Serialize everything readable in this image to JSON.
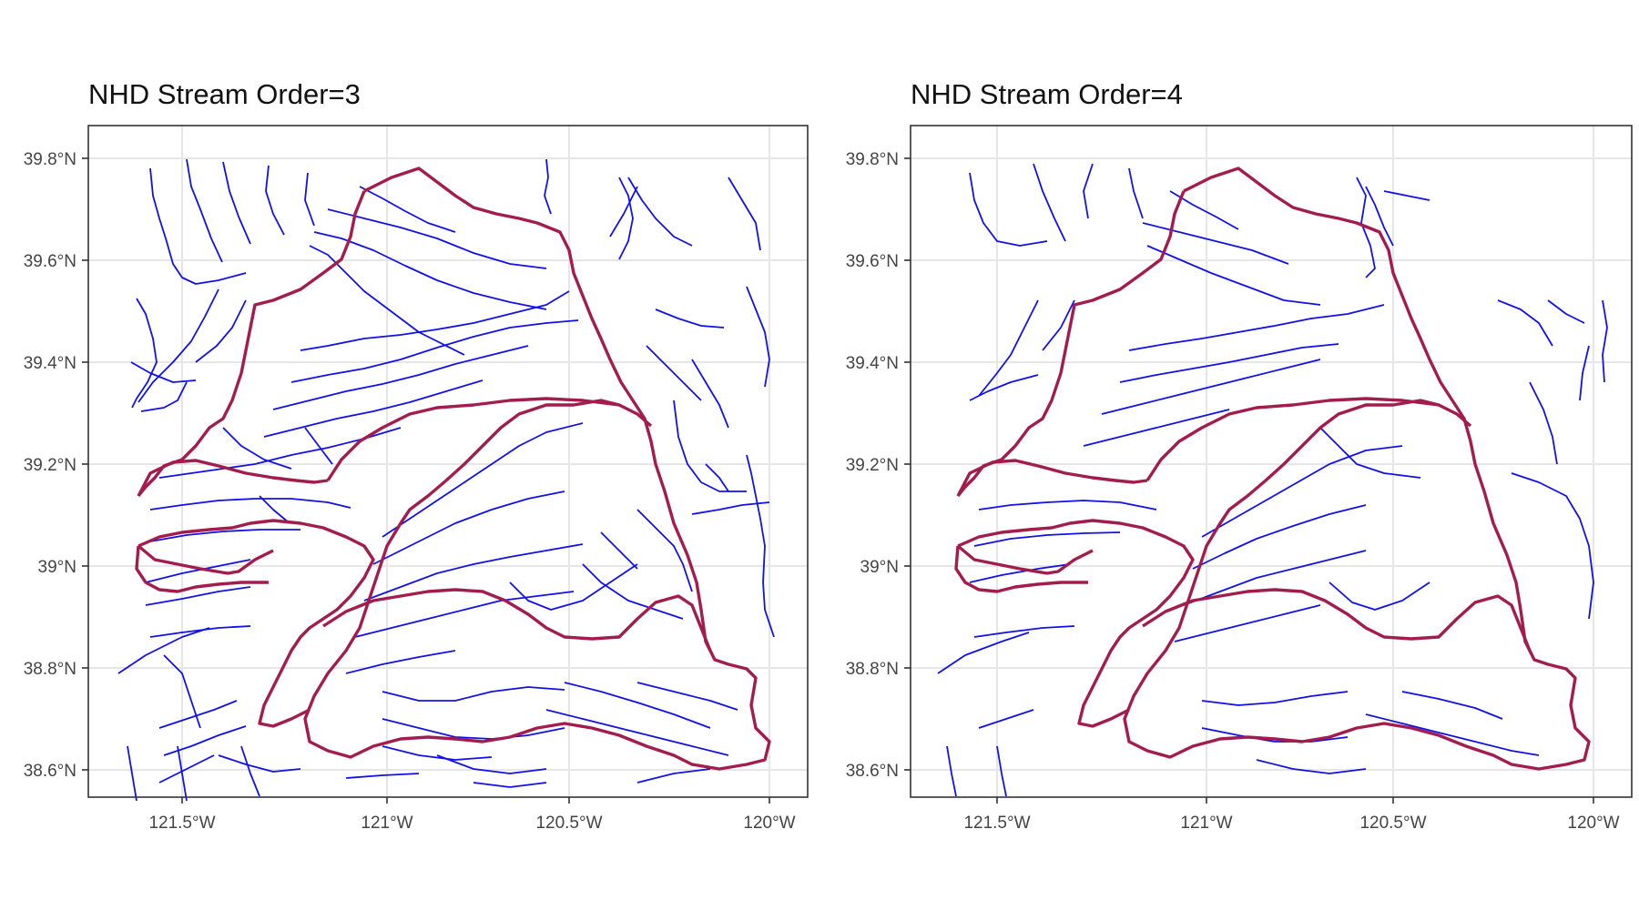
{
  "panels": [
    {
      "title": "NHD Stream Order=3",
      "x_ticks": [
        "121.5°W",
        "121°W",
        "120.5°W",
        "120°W"
      ],
      "y_ticks": [
        "39.8°N",
        "39.6°N",
        "39.4°N",
        "39.2°N",
        "39°N",
        "38.8°N",
        "38.6°N"
      ]
    },
    {
      "title": "NHD Stream Order=4",
      "x_ticks": [
        "121.5°W",
        "121°W",
        "120.5°W",
        "120°W"
      ],
      "y_ticks": [
        "39.8°N",
        "39.6°N",
        "39.4°N",
        "39.2°N",
        "39°N",
        "38.8°N",
        "38.6°N"
      ]
    }
  ],
  "colors": {
    "stream": "#1010ee",
    "boundary": "#a31c4d",
    "grid": "#e6e6e6",
    "axis": "#333333"
  }
}
